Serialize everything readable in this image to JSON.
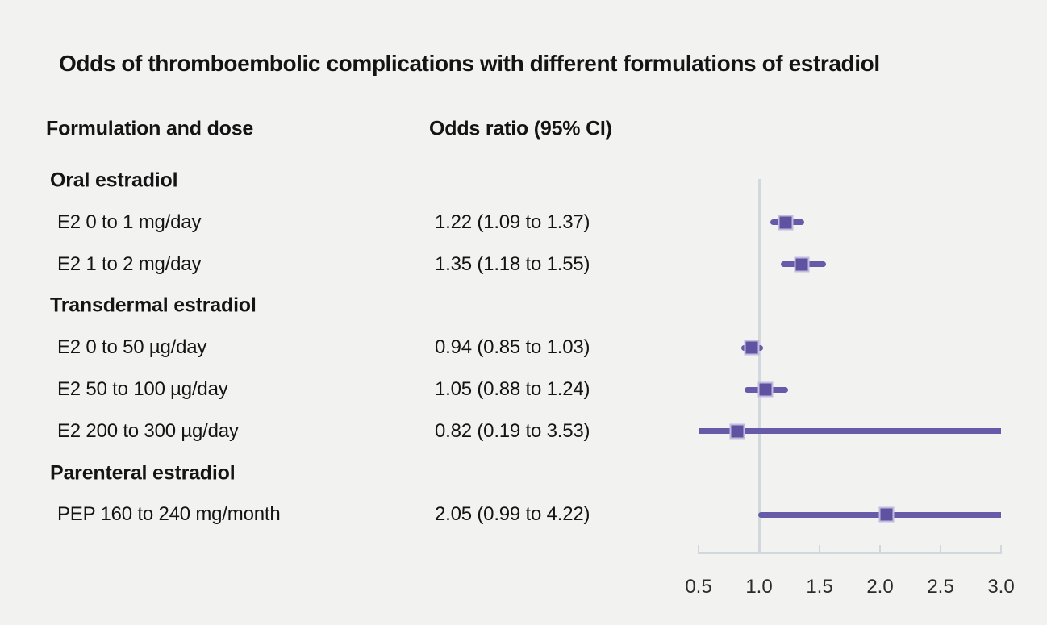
{
  "chart_data": {
    "type": "forest",
    "title": "Odds of thromboembolic complications with different formulations of estradiol",
    "column_headers": {
      "formulation": "Formulation and dose",
      "odds_ratio": "Odds ratio (95% CI)"
    },
    "rows": [
      {
        "type": "group",
        "label": "Oral estradiol"
      },
      {
        "type": "item",
        "label": "E2 0 to 1 mg/day",
        "display": "1.22 (1.09 to 1.37)",
        "or": 1.22,
        "ci_low": 1.09,
        "ci_high": 1.37
      },
      {
        "type": "item",
        "label": "E2 1 to 2 mg/day",
        "display": "1.35 (1.18 to 1.55)",
        "or": 1.35,
        "ci_low": 1.18,
        "ci_high": 1.55
      },
      {
        "type": "group",
        "label": "Transdermal estradiol"
      },
      {
        "type": "item",
        "label": "E2 0 to 50 µg/day",
        "display": "0.94 (0.85 to 1.03)",
        "or": 0.94,
        "ci_low": 0.85,
        "ci_high": 1.03
      },
      {
        "type": "item",
        "label": "E2 50 to 100 µg/day",
        "display": "1.05 (0.88 to 1.24)",
        "or": 1.05,
        "ci_low": 0.88,
        "ci_high": 1.24
      },
      {
        "type": "item",
        "label": "E2 200 to 300 µg/day",
        "display": "0.82 (0.19 to 3.53)",
        "or": 0.82,
        "ci_low": 0.19,
        "ci_high": 3.53
      },
      {
        "type": "group",
        "label": "Parenteral estradiol"
      },
      {
        "type": "item",
        "label": "PEP 160 to 240 mg/month",
        "display": "2.05 (0.99 to 4.22)",
        "or": 2.05,
        "ci_low": 0.99,
        "ci_high": 4.22
      }
    ],
    "xaxis": {
      "min": 0.5,
      "max": 3.0,
      "tick_values": [
        0.5,
        1.0,
        1.5,
        2.0,
        2.5,
        3.0
      ],
      "tick_labels": [
        "0.5",
        "1.0",
        "1.5",
        "2.0",
        "2.5",
        "3.0"
      ],
      "reference_line": 1.0
    },
    "colors": {
      "background": "#f2f2f1",
      "text": "#141414",
      "tick_text": "#2b2b2b",
      "ci_line": "#675aa8",
      "marker_fill": "#5e52a1",
      "marker_border": "#c3badf",
      "axis": "#d2d7de",
      "reference_line": "#d3d8de"
    }
  }
}
